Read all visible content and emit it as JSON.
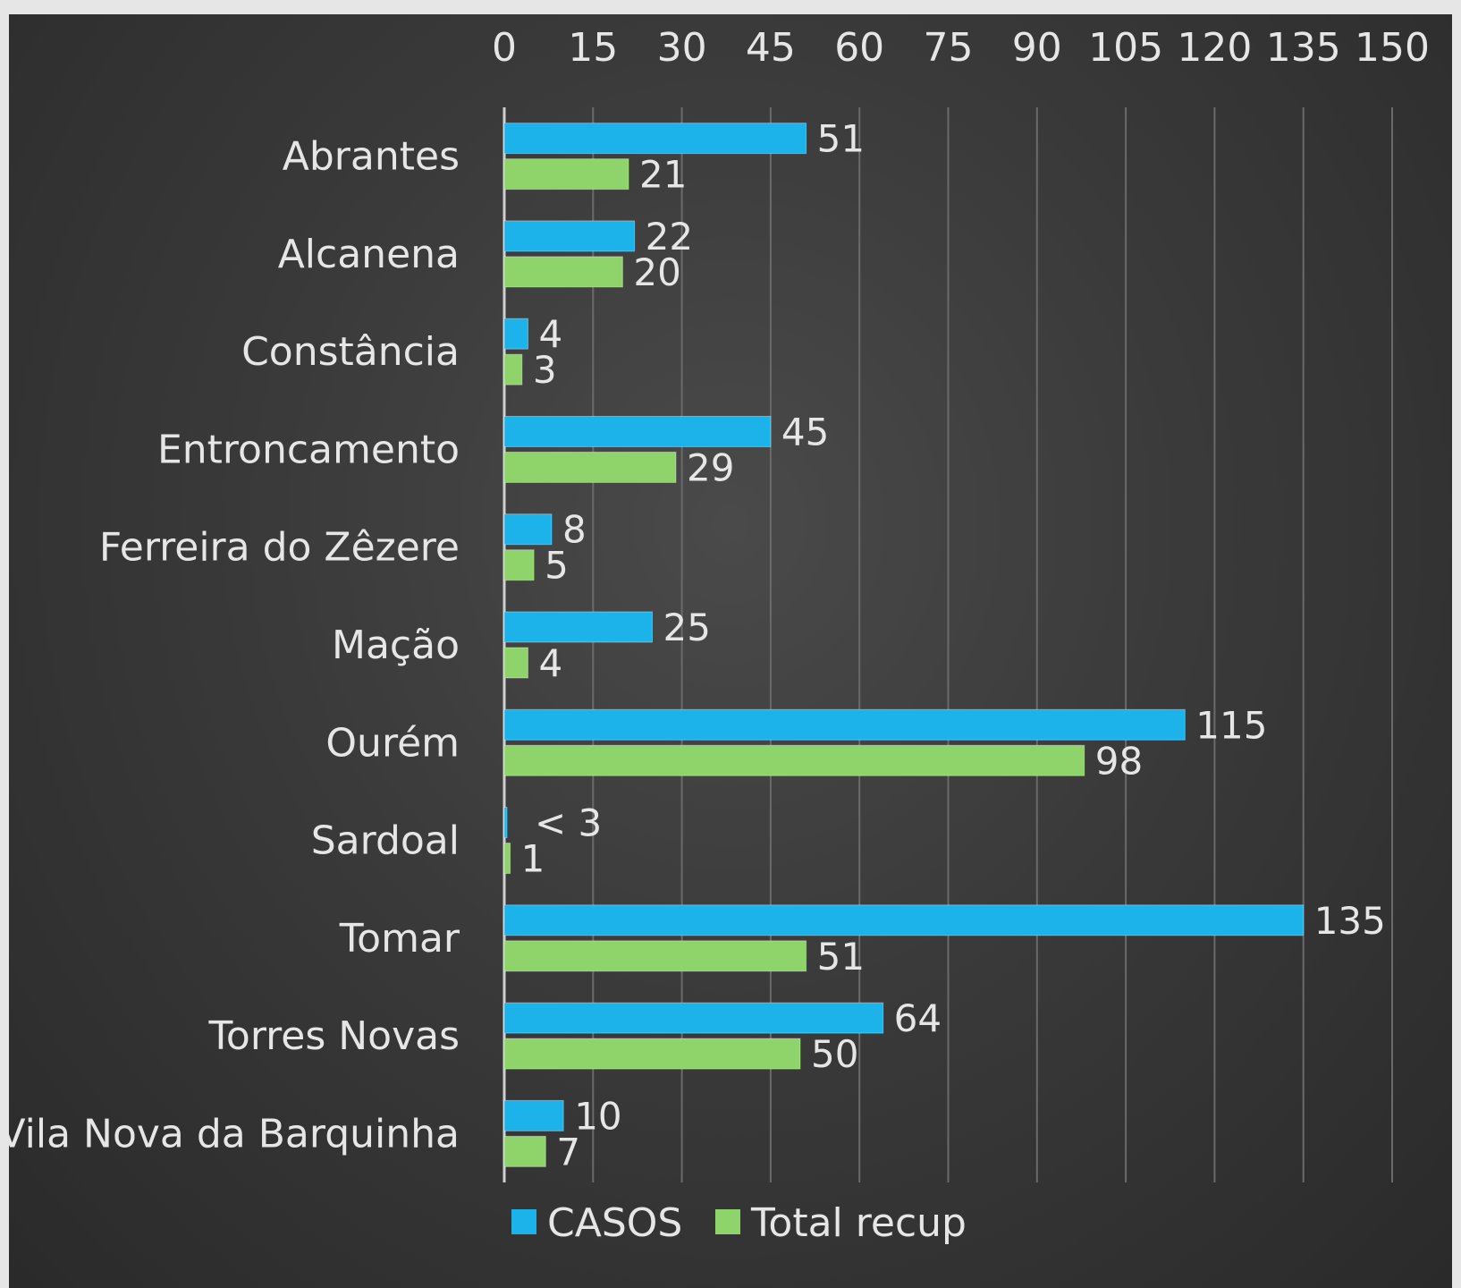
{
  "chart_data": {
    "type": "bar",
    "orientation": "horizontal",
    "categories": [
      "Abrantes",
      "Alcanena",
      "Constância",
      "Entroncamento",
      "Ferreira do Zêzere",
      "Mação",
      "Ourém",
      "Sardoal",
      "Tomar",
      "Torres Novas",
      "Vila Nova da Barquinha"
    ],
    "series": [
      {
        "name": "CASOS",
        "color": "#1bb3ea",
        "values": [
          51,
          22,
          4,
          45,
          8,
          25,
          115,
          0,
          135,
          64,
          10
        ],
        "labels": [
          "51",
          "22",
          "4",
          "45",
          "8",
          "25",
          "115",
          "< 3",
          "135",
          "64",
          "10"
        ]
      },
      {
        "name": "Total recup",
        "color": "#8ed46a",
        "values": [
          21,
          20,
          3,
          29,
          5,
          4,
          98,
          1,
          51,
          50,
          7
        ],
        "labels": [
          "21",
          "20",
          "3",
          "29",
          "5",
          "4",
          "98",
          "1",
          "51",
          "50",
          "7"
        ]
      }
    ],
    "xlim": [
      0,
      150
    ],
    "xticks": [
      0,
      15,
      30,
      45,
      60,
      75,
      90,
      105,
      120,
      135,
      150
    ],
    "axis_position": "top",
    "grid": true,
    "legend_position": "bottom",
    "title": "",
    "xlabel": "",
    "ylabel": ""
  }
}
